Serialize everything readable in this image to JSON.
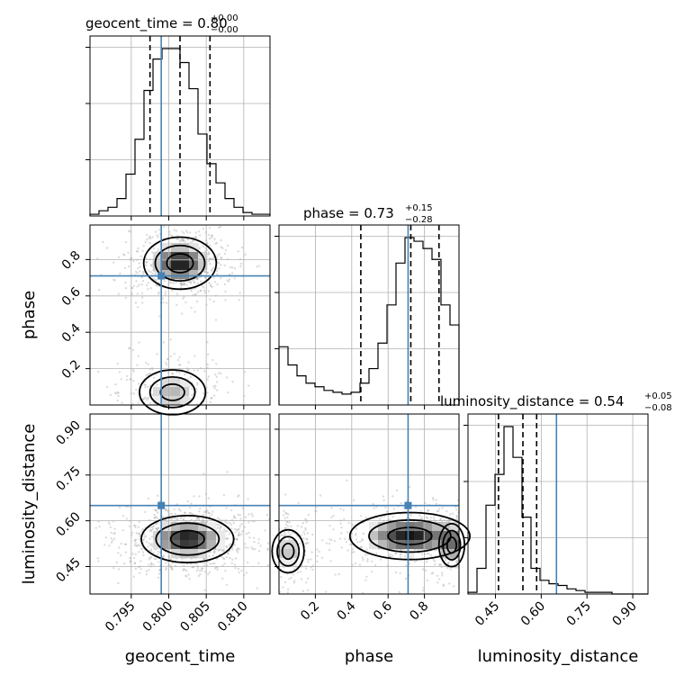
{
  "chart_data": {
    "type": "corner",
    "parameters": [
      "geocent_time",
      "phase",
      "luminosity_distance"
    ],
    "truths": {
      "geocent_time": 0.799,
      "phase": 0.71,
      "luminosity_distance": 0.65
    },
    "titles": [
      {
        "param": "geocent_time",
        "text": "geocent_time = 0.80",
        "plus": "+0.00",
        "minus": "−0.00"
      },
      {
        "param": "phase",
        "text": "phase = 0.73",
        "plus": "+0.15",
        "minus": "−0.28"
      },
      {
        "param": "luminosity_distance",
        "text": "luminosity_distance = 0.54",
        "plus": "+0.05",
        "minus": "−0.08"
      }
    ],
    "ranges": {
      "geocent_time": [
        0.7895,
        0.8135
      ],
      "phase": [
        0.0,
        0.99
      ],
      "luminosity_distance": [
        0.36,
        0.95
      ]
    },
    "ticks": {
      "geocent_time": [
        "0.795",
        "0.800",
        "0.805",
        "0.810"
      ],
      "phase": [
        "0.2",
        "0.4",
        "0.6",
        "0.8"
      ],
      "luminosity_distance": [
        "0.45",
        "0.60",
        "0.75",
        "0.90"
      ]
    },
    "quantiles": {
      "geocent_time": [
        0.7975,
        0.8015,
        0.8055
      ],
      "phase": [
        0.45,
        0.725,
        0.88
      ],
      "luminosity_distance": [
        0.46,
        0.54,
        0.585
      ]
    },
    "histograms": {
      "geocent_time": [
        0.01,
        0.03,
        0.05,
        0.1,
        0.24,
        0.44,
        0.72,
        0.9,
        0.96,
        0.96,
        0.88,
        0.73,
        0.47,
        0.3,
        0.19,
        0.1,
        0.05,
        0.02,
        0.01,
        0.01
      ],
      "phase": [
        0.32,
        0.22,
        0.16,
        0.12,
        0.1,
        0.08,
        0.07,
        0.06,
        0.07,
        0.12,
        0.2,
        0.34,
        0.55,
        0.78,
        0.92,
        0.9,
        0.86,
        0.8,
        0.55,
        0.44
      ],
      "luminosity_distance": [
        0.01,
        0.15,
        0.52,
        0.7,
        0.98,
        0.8,
        0.45,
        0.15,
        0.08,
        0.06,
        0.05,
        0.03,
        0.02,
        0.01,
        0.01,
        0.01,
        0.0,
        0.0,
        0.0,
        0.0
      ]
    },
    "densities": {
      "phase_vs_geocent_time": [
        {
          "x": 0.8015,
          "y": 0.78,
          "sx": 0.0022,
          "sy": 0.065,
          "w": 1.0
        },
        {
          "x": 0.8005,
          "y": 0.07,
          "sx": 0.0025,
          "sy": 0.07,
          "w": 0.45
        }
      ],
      "luminosity_distance_vs_geocent_time": [
        {
          "x": 0.8025,
          "y": 0.54,
          "sx": 0.0028,
          "sy": 0.035,
          "w": 1.0
        }
      ],
      "luminosity_distance_vs_phase": [
        {
          "x": 0.72,
          "y": 0.55,
          "sx": 0.15,
          "sy": 0.035,
          "w": 1.0
        },
        {
          "x": 0.05,
          "y": 0.5,
          "sx": 0.05,
          "sy": 0.04,
          "w": 0.45
        },
        {
          "x": 0.95,
          "y": 0.52,
          "sx": 0.04,
          "sy": 0.04,
          "w": 0.55
        }
      ]
    },
    "grid": true,
    "colors": {
      "truth": "#4682b4",
      "line": "#000000",
      "grid": "#b0b0b0",
      "samples": "#9a9a9a"
    }
  }
}
